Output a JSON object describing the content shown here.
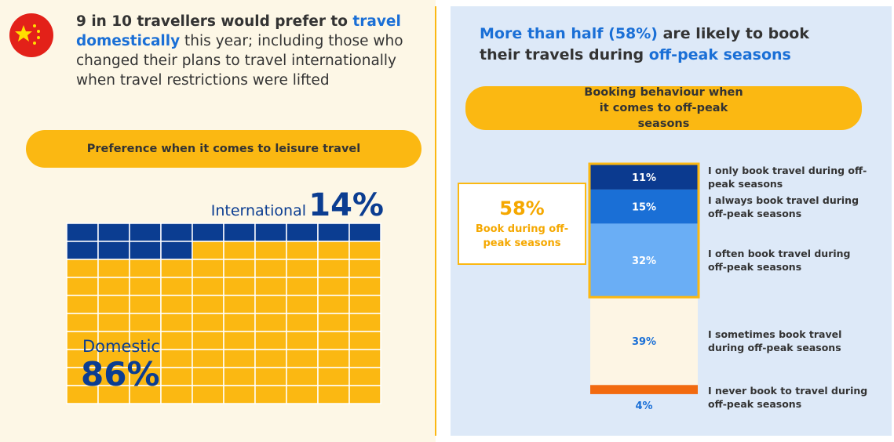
{
  "left": {
    "headline": [
      "9 in 10 travellers would prefer to ",
      "travel domestically",
      " this year; including those who changed their plans to travel internationally when travel restrictions were lifted"
    ],
    "pill": "Preference when it comes to leisure travel"
  },
  "right": {
    "headline": [
      "More than half (58%)",
      " are likely to book their travels during ",
      "off-peak seasons"
    ],
    "pill": "Booking behaviour when it comes to off-peak seasons"
  },
  "chart_data": [
    {
      "type": "waffle",
      "series": [
        {
          "name": "International",
          "color": "#0b3d91",
          "values": [
            14
          ],
          "value_labels": [
            "14%"
          ]
        },
        {
          "name": "Domestic",
          "color": "#fbb812",
          "values": [
            86
          ],
          "value_labels": [
            "86%"
          ]
        }
      ]
    },
    {
      "type": "stacked_bar",
      "categories": [
        "I only book travel during off-peak seasons",
        "I always book travel during off-peak seasons",
        "I often book travel during off-peak seasons",
        "I sometimes book travel during off-peak seasons",
        "I never book to travel during off-peak seasons"
      ],
      "values": [
        11,
        15,
        32,
        39,
        4
      ],
      "value_labels": [
        "11%",
        "15%",
        "32%",
        "39%",
        "4%"
      ],
      "colors": [
        "#0b3a8f",
        "#1a6fd6",
        "#6aaef5",
        "#fdf5e4",
        "#f26a0f"
      ],
      "callout": {
        "value": 58,
        "label": "58%",
        "text": "Book during off-peak seasons"
      }
    }
  ]
}
